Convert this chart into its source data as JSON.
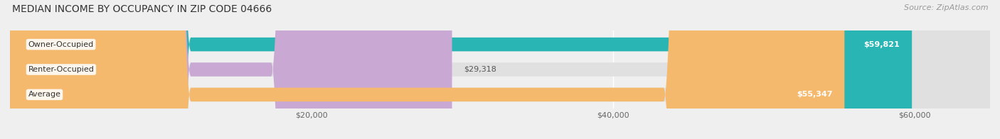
{
  "title": "MEDIAN INCOME BY OCCUPANCY IN ZIP CODE 04666",
  "source": "Source: ZipAtlas.com",
  "categories": [
    "Owner-Occupied",
    "Renter-Occupied",
    "Average"
  ],
  "values": [
    59821,
    29318,
    55347
  ],
  "bar_colors": [
    "#2ab5b5",
    "#c9a8d4",
    "#f5b96e"
  ],
  "value_labels": [
    "$59,821",
    "$29,318",
    "$55,347"
  ],
  "value_inside": [
    true,
    false,
    true
  ],
  "xlim": [
    0,
    65000
  ],
  "xticks": [
    20000,
    40000,
    60000
  ],
  "xticklabels": [
    "$20,000",
    "$40,000",
    "$60,000"
  ],
  "bar_height": 0.55,
  "background_color": "#efefef",
  "bar_bg_color": "#e0e0e0",
  "title_fontsize": 10,
  "source_fontsize": 8,
  "label_fontsize": 8,
  "value_fontsize": 8
}
